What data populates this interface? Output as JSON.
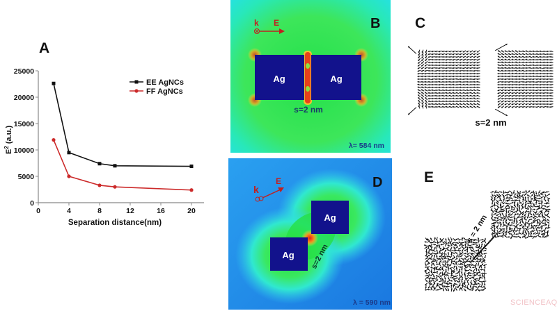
{
  "figure": {
    "panels": {
      "A": {
        "label": "A"
      },
      "B": {
        "label": "B",
        "block_left": "Ag",
        "block_right": "Ag",
        "gap_label": "s=2 nm",
        "wavelength": "λ= 584 nm",
        "k_label": "k",
        "e_label": "E"
      },
      "C": {
        "label": "C",
        "gap_label": "s=2 nm"
      },
      "D": {
        "label": "D",
        "block_upper": "Ag",
        "block_lower": "Ag",
        "gap_label": "s=2 nm",
        "wavelength": "λ = 590 nm",
        "k_label": "k",
        "e_label": "E"
      },
      "E": {
        "label": "E",
        "gap_label": "s = 2 nm"
      }
    },
    "watermark": "SCIENCEAQ.COM"
  },
  "colors": {
    "ee_series": "#111111",
    "ff_series": "#cc2a2a",
    "ag_block": "#12128c",
    "field_green": "#22e04a",
    "field_cyan": "#25e8e0",
    "field_blue": "#1a8cf0",
    "hotspot": "#e8301a",
    "arrow_red": "#d02020"
  },
  "chart_data": {
    "type": "line",
    "title": "",
    "xlabel": "Separation distance(nm)",
    "ylabel": "E² (a.u.)",
    "x": [
      2,
      4,
      8,
      10,
      20
    ],
    "series": [
      {
        "name": "EE AgNCs",
        "values": [
          22600,
          9500,
          7400,
          7000,
          6900
        ],
        "marker": "square",
        "color": "#111111"
      },
      {
        "name": "FF AgNCs",
        "values": [
          11900,
          5000,
          3300,
          3000,
          2400
        ],
        "marker": "circle",
        "color": "#cc2a2a"
      }
    ],
    "xticks": [
      "0",
      "4",
      "8",
      "12",
      "16",
      "20"
    ],
    "yticks": [
      "0",
      "5000",
      "10000",
      "15000",
      "20000",
      "25000"
    ],
    "xlim": [
      0,
      22
    ],
    "ylim": [
      0,
      25000
    ],
    "grid": false,
    "legend_position": "upper right"
  }
}
